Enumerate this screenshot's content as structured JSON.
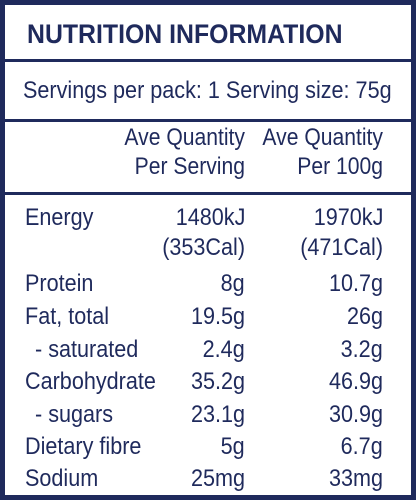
{
  "label": {
    "title": "NUTRITION INFORMATION",
    "servings_line": "Servings per pack: 1  Serving size: 75g",
    "col_per_serving": [
      "Ave Quantity",
      "Per Serving"
    ],
    "col_per_100g": [
      "Ave Quantity",
      "Per 100g"
    ],
    "rows": [
      {
        "name": "Energy",
        "per_serving": "1480kJ",
        "per_100g": "1970kJ"
      },
      {
        "name": "",
        "per_serving": "(353Cal)",
        "per_100g": "(471Cal)"
      },
      {
        "name": "Protein",
        "per_serving": "8g",
        "per_100g": "10.7g"
      },
      {
        "name": "Fat, total",
        "per_serving": "19.5g",
        "per_100g": "26g"
      },
      {
        "name": "- saturated",
        "per_serving": "2.4g",
        "per_100g": "3.2g"
      },
      {
        "name": "Carbohydrate",
        "per_serving": "35.2g",
        "per_100g": "46.9g"
      },
      {
        "name": "- sugars",
        "per_serving": "23.1g",
        "per_100g": "30.9g"
      },
      {
        "name": "Dietary fibre",
        "per_serving": "5g",
        "per_100g": "6.7g"
      },
      {
        "name": "Sodium",
        "per_serving": "25mg",
        "per_100g": "33mg"
      }
    ],
    "colors": {
      "ink": "#1f2a5c",
      "background": "#ffffff"
    }
  }
}
